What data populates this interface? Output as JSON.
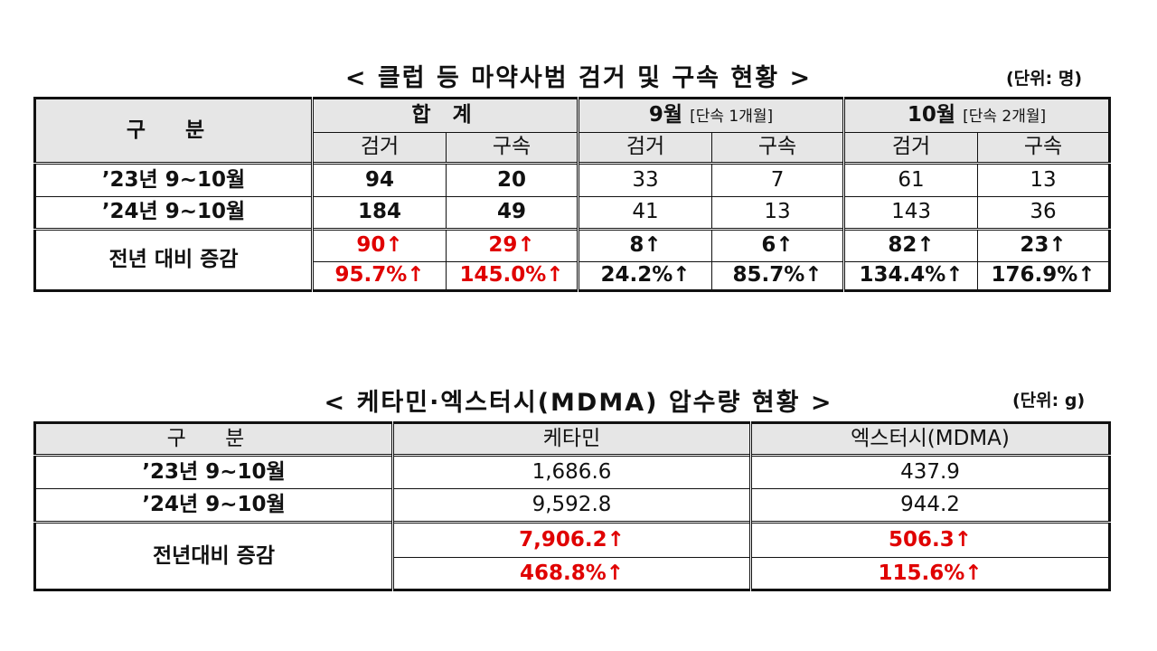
{
  "table1": {
    "title": "< 클럽 등 마약사범 검거 및 구속 현황 >",
    "unit": "(단위: 명)",
    "header": {
      "category": "구  분",
      "total": "합  계",
      "sep": "9월",
      "sep_note": "[단속 1개월]",
      "oct": "10월",
      "oct_note": "[단속 2개월]",
      "arrest": "검거",
      "detain": "구속"
    },
    "rows": [
      {
        "label": "’23년 9~10월",
        "values": [
          "94",
          "20",
          "33",
          "7",
          "61",
          "13"
        ]
      },
      {
        "label": "’24년 9~10월",
        "values": [
          "184",
          "49",
          "41",
          "13",
          "143",
          "36"
        ]
      }
    ],
    "change_label": "전년 대비 증감",
    "change_abs": [
      "90↑",
      "29↑",
      "8↑",
      "6↑",
      "82↑",
      "23↑"
    ],
    "change_pct": [
      "95.7%↑",
      "145.0%↑",
      "24.2%↑",
      "85.7%↑",
      "134.4%↑",
      "176.9%↑"
    ]
  },
  "table2": {
    "title": "< 케타민·엑스터시(MDMA) 압수량 현황 >",
    "unit": "(단위: g)",
    "header": {
      "category": "구  분",
      "ketamine": "케타민",
      "ecstasy": "엑스터시(MDMA)"
    },
    "rows": [
      {
        "label": "’23년 9~10월",
        "values": [
          "1,686.6",
          "437.9"
        ]
      },
      {
        "label": "’24년 9~10월",
        "values": [
          "9,592.8",
          "944.2"
        ]
      }
    ],
    "change_label": "전년대비 증감",
    "change_abs": [
      "7,906.2↑",
      "506.3↑"
    ],
    "change_pct": [
      "468.8%↑",
      "115.6%↑"
    ]
  }
}
